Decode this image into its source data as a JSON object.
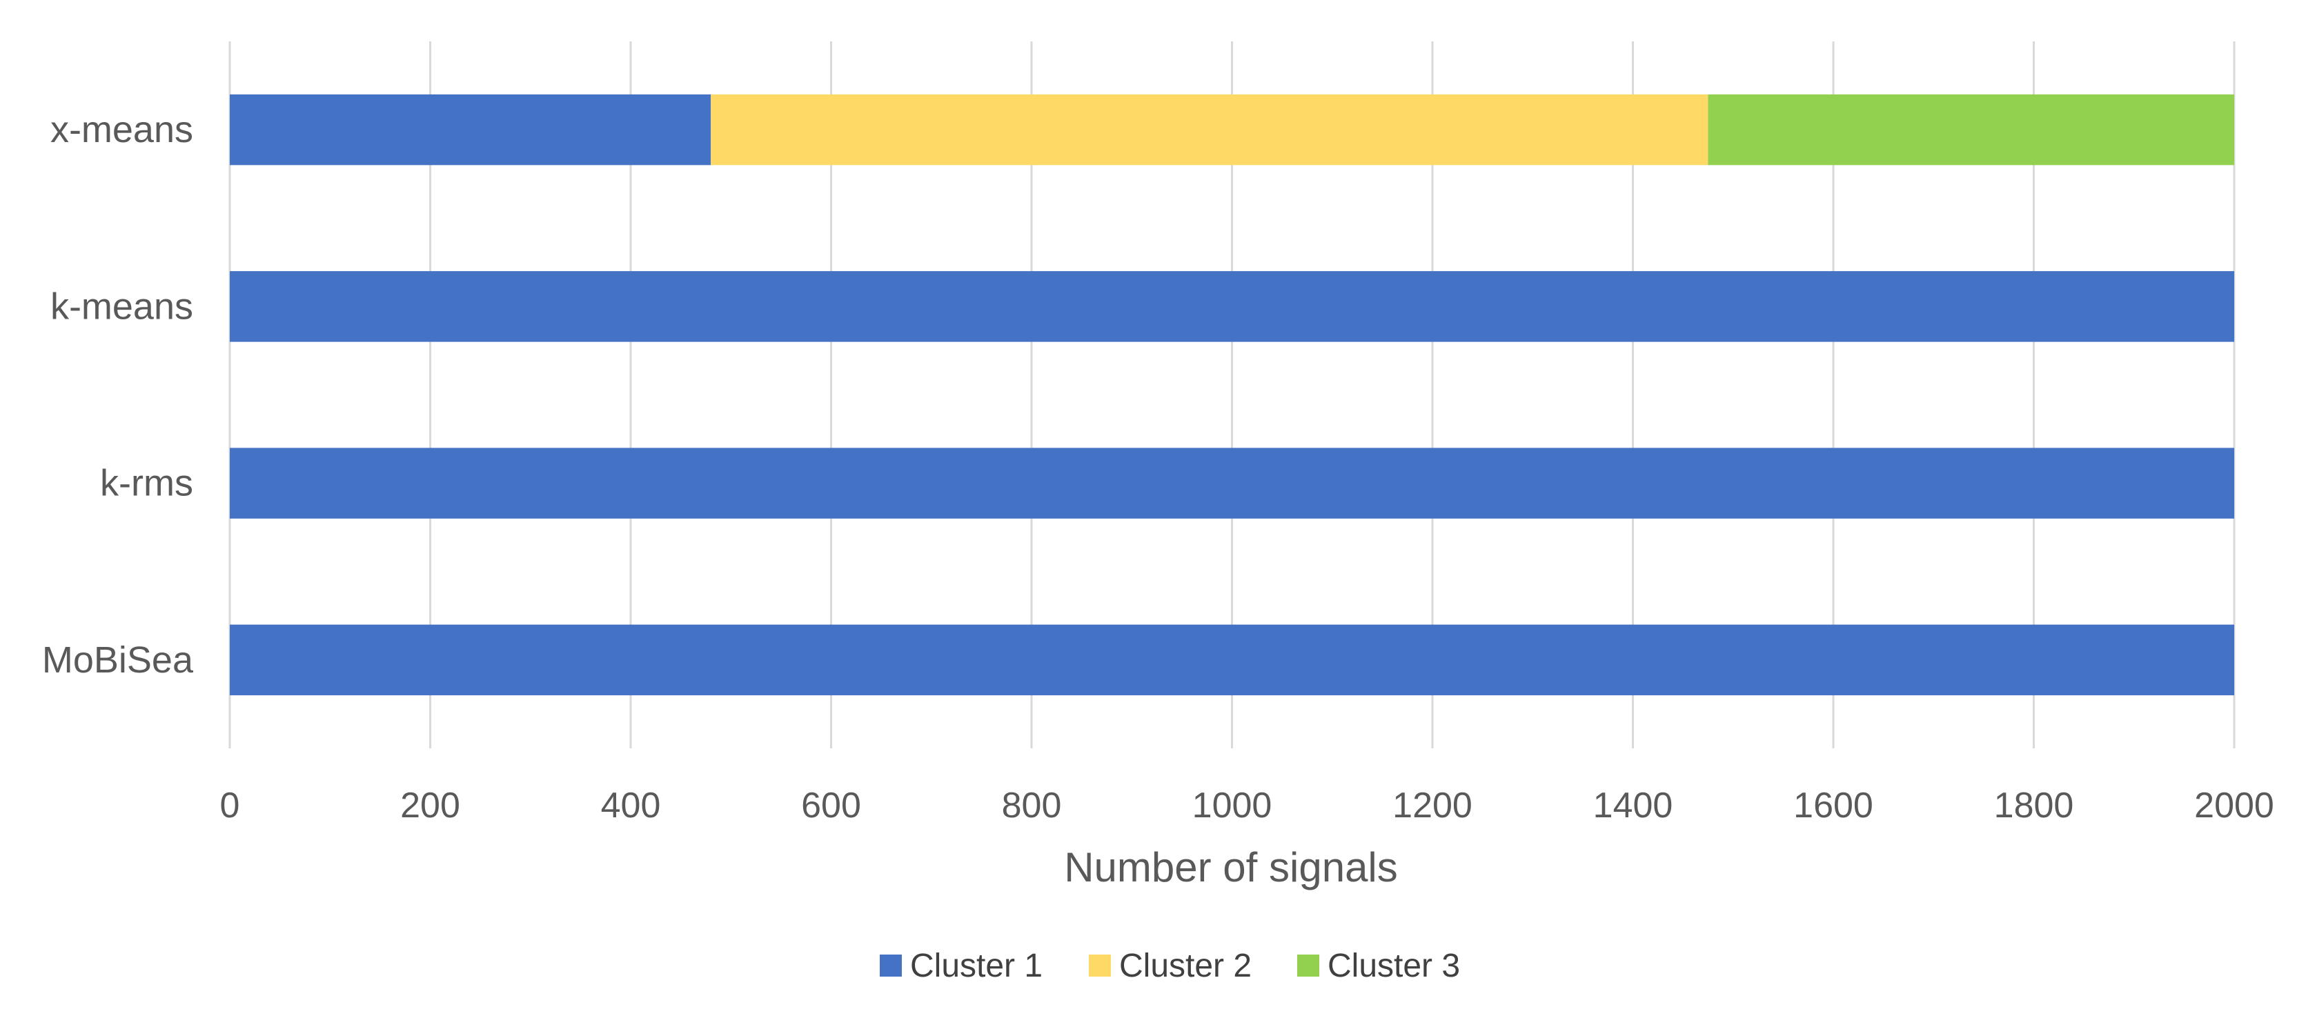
{
  "chart_data": {
    "type": "bar",
    "orientation": "horizontal",
    "stacked": true,
    "categories": [
      "x-means",
      "k-means",
      "k-rms",
      "MoBiSea"
    ],
    "series": [
      {
        "name": "Cluster 1",
        "color": "#4472C4",
        "values": [
          480,
          2000,
          2000,
          2000
        ]
      },
      {
        "name": "Cluster 2",
        "color": "#FFD966",
        "values": [
          995,
          0,
          0,
          0
        ]
      },
      {
        "name": "Cluster 3",
        "color": "#92D050",
        "values": [
          525,
          0,
          0,
          0
        ]
      }
    ],
    "xlabel": "Number of signals",
    "ylabel": "",
    "title": "",
    "xlim": [
      0,
      2000
    ],
    "xticks": [
      0,
      200,
      400,
      600,
      800,
      1000,
      1200,
      1400,
      1600,
      1800,
      2000
    ],
    "grid": "vertical",
    "legend": "bottom-center"
  }
}
